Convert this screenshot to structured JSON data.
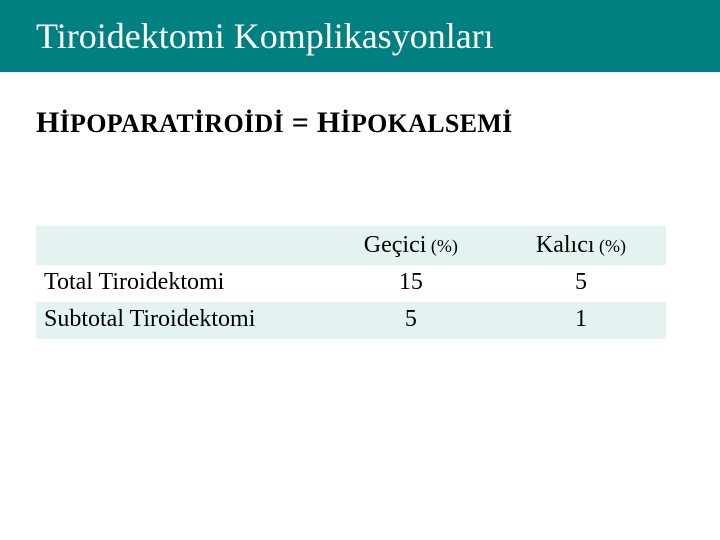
{
  "colors": {
    "title_bg": "#008080",
    "title_fg": "#ffffff",
    "band_bg": "#e5f2f2",
    "text": "#000000",
    "page_bg": "#ffffff"
  },
  "title": "Tiroidektomi Komplikasyonları",
  "subtitle_lead": "H",
  "subtitle_caps1": "İPOPARATİROİDİ",
  "subtitle_eq": " = ",
  "subtitle_lead2": "H",
  "subtitle_caps2": "İPOKALSEMİ",
  "table": {
    "columns": [
      {
        "label": "Geçici",
        "pct_suffix": " (%)"
      },
      {
        "label": "Kalıcı",
        "pct_suffix": " (%)"
      }
    ],
    "rows": [
      {
        "label": "Total Tiroidektomi",
        "values": [
          "15",
          "5"
        ]
      },
      {
        "label": "Subtotal Tiroidektomi",
        "values": [
          "5",
          "1"
        ]
      }
    ]
  },
  "fonts": {
    "title_size_pt": 36,
    "subtitle_size_pt": 30,
    "smallcaps_size_pt": 26,
    "table_size_pt": 24,
    "pct_size_pt": 18
  }
}
